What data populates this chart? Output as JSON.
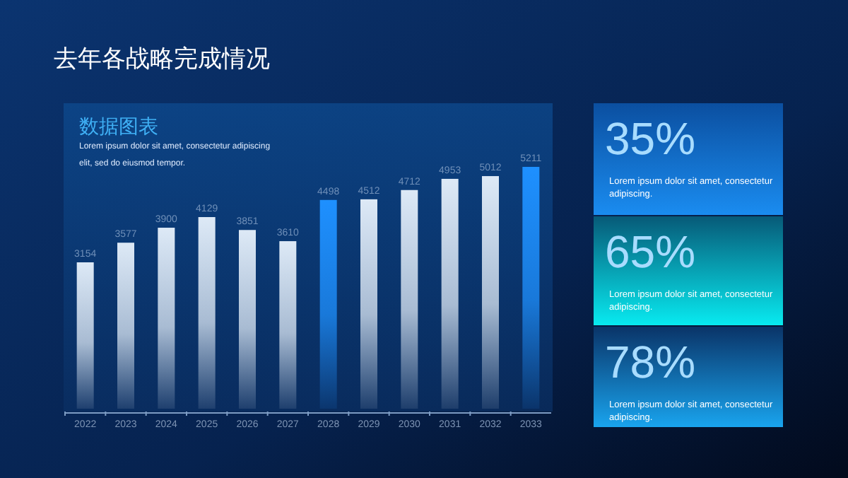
{
  "chart_data": [
    {
      "type": "bar",
      "title": "去年各战略完成情况",
      "subtitle": "数据图表",
      "annotations": [
        "Lorem ipsum dolor sit amet, consectetur adipiscing elit, sed do eiusmod tempor."
      ],
      "categories": [
        "2022",
        "2023",
        "2024",
        "2025",
        "2026",
        "2027",
        "2028",
        "2029",
        "2030",
        "2031",
        "2032",
        "2033"
      ],
      "values": [
        3154,
        3577,
        3900,
        4129,
        3851,
        3610,
        4498,
        4512,
        4712,
        4953,
        5012,
        5211
      ],
      "colors": [
        "#dde9f6",
        "#dde9f6",
        "#dde9f6",
        "#dde9f6",
        "#dde9f6",
        "#dde9f6",
        "#1e90ff",
        "#dde9f6",
        "#dde9f6",
        "#dde9f6",
        "#dde9f6",
        "#1e90ff"
      ],
      "data_labels": true
    },
    {
      "type": "other",
      "title": "35%",
      "annotations": [
        "Lorem ipsum dolor sit amet, consectetur adipiscing."
      ]
    },
    {
      "type": "other",
      "title": "65%",
      "annotations": [
        "Lorem ipsum dolor sit amet, consectetur adipiscing."
      ]
    },
    {
      "type": "other",
      "title": "78%",
      "annotations": [
        "Lorem ipsum dolor sit amet, consectetur adipiscing."
      ]
    }
  ]
}
